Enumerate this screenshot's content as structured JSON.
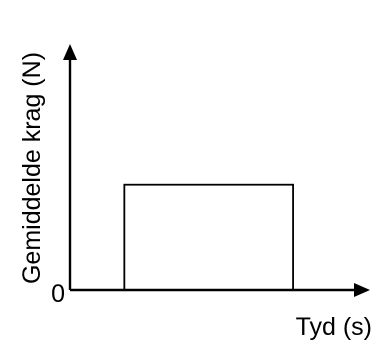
{
  "chart_data": {
    "type": "bar",
    "title": "",
    "xlabel": "Tyd (s)",
    "ylabel": "Gemiddelde krag (N)",
    "origin_label": "0",
    "series": [
      {
        "values": [
          1
        ]
      }
    ],
    "x_extent": [
      0,
      1
    ],
    "y_extent": [
      0,
      1
    ],
    "bar_x_span": [
      0.19,
      0.78
    ],
    "bar_height_fraction": 0.45,
    "grid": false,
    "legend": "none",
    "x_ticks": [],
    "y_ticks": []
  },
  "colors": {
    "axis": "#000000",
    "bar_outline": "#000000",
    "background": "#ffffff"
  }
}
